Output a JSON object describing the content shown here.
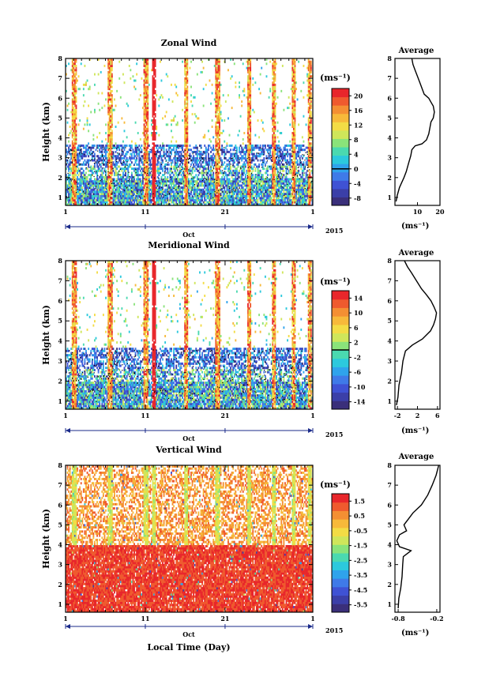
{
  "chart_data": [
    {
      "type": "heatmap",
      "title": "Zonal Wind",
      "ylabel": "Height (km)",
      "ylim": [
        0.6,
        8
      ],
      "y_ticks": [
        "1",
        "2",
        "3",
        "4",
        "5",
        "6",
        "7",
        "8"
      ],
      "x_ticks": [
        "1",
        "11",
        "21",
        "1"
      ],
      "month_label": "Oct",
      "year_label": "2015",
      "colorbar": {
        "unit": "(ms⁻¹)",
        "range": [
          -10,
          22
        ],
        "tick_labels": [
          "20",
          "16",
          "12",
          "8",
          "4",
          "0",
          "-4",
          "-8"
        ],
        "tick_values": [
          20,
          16,
          12,
          8,
          4,
          0,
          -4,
          -8
        ],
        "marker_value": 0
      },
      "profile": {
        "title": "Average",
        "xlabel": "(ms⁻¹)",
        "xlim": [
          0,
          20
        ],
        "x_ticks": [
          "10",
          "20"
        ],
        "x_tick_values": [
          10,
          20
        ],
        "points": [
          [
            0.5,
            0.8
          ],
          [
            1,
            1.1
          ],
          [
            2,
            1.5
          ],
          [
            4,
            2.0
          ],
          [
            5,
            2.3
          ],
          [
            6,
            2.7
          ],
          [
            7,
            3.1
          ],
          [
            7.5,
            3.4
          ],
          [
            9,
            3.6
          ],
          [
            12,
            3.7
          ],
          [
            14,
            3.9
          ],
          [
            15,
            4.2
          ],
          [
            15.5,
            4.5
          ],
          [
            16,
            4.8
          ],
          [
            17,
            5.0
          ],
          [
            17.5,
            5.3
          ],
          [
            17,
            5.6
          ],
          [
            16,
            5.8
          ],
          [
            15,
            6.0
          ],
          [
            13,
            6.2
          ],
          [
            12,
            6.5
          ],
          [
            11,
            6.8
          ],
          [
            10,
            7.1
          ],
          [
            9,
            7.4
          ],
          [
            8,
            7.7
          ],
          [
            7.5,
            8.0
          ]
        ]
      }
    },
    {
      "type": "heatmap",
      "title": "Meridional Wind",
      "ylabel": "Height (km)",
      "ylim": [
        0.6,
        8
      ],
      "y_ticks": [
        "1",
        "2",
        "3",
        "4",
        "5",
        "6",
        "7",
        "8"
      ],
      "x_ticks": [
        "1",
        "11",
        "21",
        "1"
      ],
      "month_label": "Oct",
      "year_label": "2015",
      "colorbar": {
        "unit": "(ms⁻¹)",
        "range": [
          -16,
          16
        ],
        "tick_labels": [
          "14",
          "10",
          "6",
          "2",
          "-2",
          "-6",
          "-10",
          "-14"
        ],
        "tick_values": [
          14,
          10,
          6,
          2,
          -2,
          -6,
          -10,
          -14
        ],
        "marker_value": 0
      },
      "profile": {
        "title": "Average",
        "xlabel": "(ms⁻¹)",
        "xlim": [
          -2.5,
          6.5
        ],
        "x_ticks": [
          "-2",
          "2",
          "6"
        ],
        "x_tick_values": [
          -2,
          2,
          6
        ],
        "points": [
          [
            -2.2,
            0.8
          ],
          [
            -1.9,
            1.2
          ],
          [
            -1.7,
            1.8
          ],
          [
            -1.2,
            2.4
          ],
          [
            -0.9,
            3.0
          ],
          [
            -0.4,
            3.5
          ],
          [
            1.0,
            3.8
          ],
          [
            3.0,
            4.1
          ],
          [
            4.6,
            4.5
          ],
          [
            5.2,
            4.8
          ],
          [
            5.6,
            5.1
          ],
          [
            5.8,
            5.4
          ],
          [
            5.3,
            5.7
          ],
          [
            4.7,
            6.0
          ],
          [
            3.8,
            6.3
          ],
          [
            2.8,
            6.6
          ],
          [
            1.8,
            7.0
          ],
          [
            0.8,
            7.4
          ],
          [
            0.0,
            7.7
          ],
          [
            -0.6,
            8.0
          ]
        ]
      }
    },
    {
      "type": "heatmap",
      "title": "Vertical Wind",
      "ylabel": "Height (km)",
      "xlabel": "Local Time (Day)",
      "ylim": [
        0.6,
        8
      ],
      "y_ticks": [
        "1",
        "2",
        "3",
        "4",
        "5",
        "6",
        "7",
        "8"
      ],
      "x_ticks": [
        "1",
        "11",
        "21",
        "1"
      ],
      "month_label": "Oct",
      "year_label": "2015",
      "colorbar": {
        "unit": "(ms⁻¹)",
        "range": [
          -6,
          2
        ],
        "tick_labels": [
          "1.5",
          "0.5",
          "-0.5",
          "-1.5",
          "-2.5",
          "-3.5",
          "-4.5",
          "-5.5"
        ],
        "tick_values": [
          1.5,
          0.5,
          -0.5,
          -1.5,
          -2.5,
          -3.5,
          -4.5,
          -5.5
        ],
        "marker_value": null
      },
      "profile": {
        "title": "Average",
        "xlabel": "(ms⁻¹)",
        "xlim": [
          -0.85,
          -0.15
        ],
        "x_ticks": [
          "-0.8",
          "-0.2"
        ],
        "x_tick_values": [
          -0.8,
          -0.2
        ],
        "points": [
          [
            -0.8,
            0.8
          ],
          [
            -0.79,
            1.3
          ],
          [
            -0.76,
            1.8
          ],
          [
            -0.74,
            2.4
          ],
          [
            -0.73,
            3.0
          ],
          [
            -0.72,
            3.4
          ],
          [
            -0.6,
            3.7
          ],
          [
            -0.78,
            3.9
          ],
          [
            -0.82,
            4.2
          ],
          [
            -0.78,
            4.5
          ],
          [
            -0.67,
            4.7
          ],
          [
            -0.71,
            5.0
          ],
          [
            -0.64,
            5.3
          ],
          [
            -0.57,
            5.6
          ],
          [
            -0.44,
            6.0
          ],
          [
            -0.34,
            6.5
          ],
          [
            -0.27,
            7.0
          ],
          [
            -0.21,
            7.5
          ],
          [
            -0.17,
            8.0
          ]
        ]
      }
    }
  ]
}
